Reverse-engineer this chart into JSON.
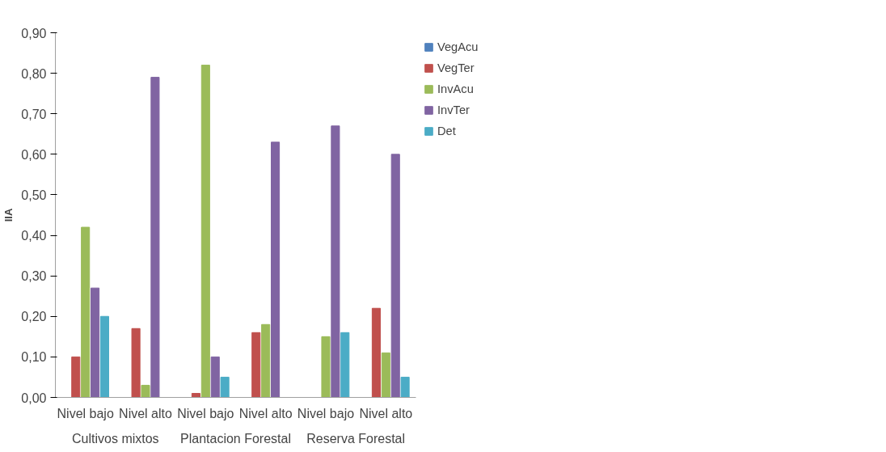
{
  "chart_data": {
    "type": "bar",
    "ylabel": "IIA",
    "categories": [
      "Nivel bajo",
      "Nivel alto",
      "Nivel bajo",
      "Nivel alto",
      "Nivel bajo",
      "Nivel alto"
    ],
    "annotations": [
      "Cultivos mixtos",
      "Plantacion Forestal",
      "Reserva Forestal"
    ],
    "series": [
      {
        "name": "VegAcu",
        "color": "#4f81bd",
        "values": [
          0,
          0,
          0,
          0,
          0,
          0
        ]
      },
      {
        "name": "VegTer",
        "color": "#c0504d",
        "values": [
          0.1,
          0.17,
          0.01,
          0.16,
          0,
          0.22
        ]
      },
      {
        "name": "InvAcu",
        "color": "#9bbb59",
        "values": [
          0.42,
          0.03,
          0.82,
          0.18,
          0.15,
          0.11
        ]
      },
      {
        "name": "InvTer",
        "color": "#8064a2",
        "values": [
          0.27,
          0.79,
          0.1,
          0.63,
          0.67,
          0.6
        ]
      },
      {
        "name": "Det",
        "color": "#4bacc6",
        "values": [
          0.2,
          0,
          0.05,
          0,
          0.16,
          0.05
        ]
      }
    ],
    "ylim": [
      0,
      0.9
    ],
    "yticks": [
      {
        "value": 0,
        "label": "0,00"
      },
      {
        "value": 0.1,
        "label": "0,10"
      },
      {
        "value": 0.2,
        "label": "0,20"
      },
      {
        "value": 0.3,
        "label": "0,30"
      },
      {
        "value": 0.4,
        "label": "0,40"
      },
      {
        "value": 0.5,
        "label": "0,50"
      },
      {
        "value": 0.6,
        "label": "0,60"
      },
      {
        "value": 0.7,
        "label": "0,70"
      },
      {
        "value": 0.8,
        "label": "0,80"
      },
      {
        "value": 0.9,
        "label": "0,90"
      }
    ],
    "grid": false,
    "legend": "right"
  }
}
